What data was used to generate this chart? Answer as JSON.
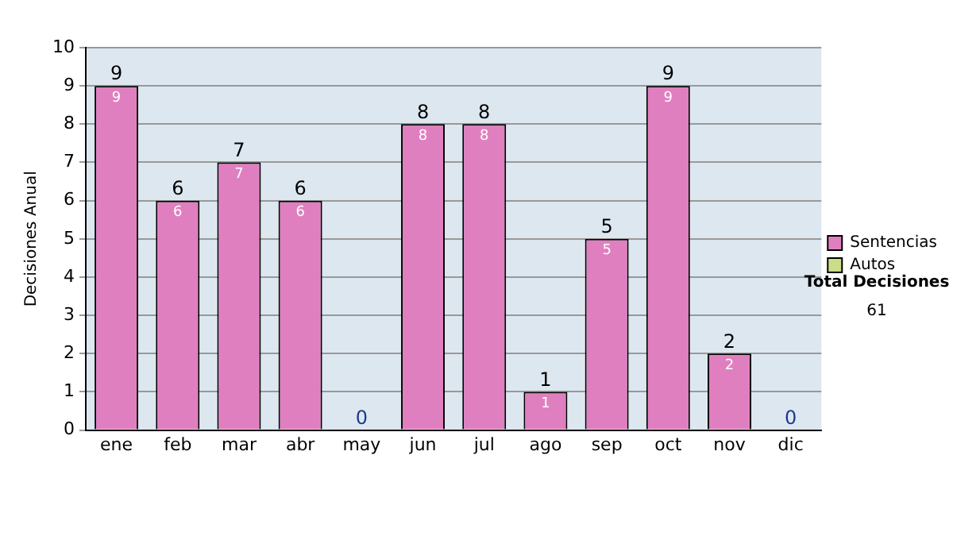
{
  "chart_data": {
    "type": "bar",
    "ylabel": "Decisiones Anual",
    "categories": [
      "ene",
      "feb",
      "mar",
      "abr",
      "may",
      "jun",
      "jul",
      "ago",
      "sep",
      "oct",
      "nov",
      "dic"
    ],
    "series": [
      {
        "name": "Sentencias",
        "color": "#e07fbf",
        "values": [
          9,
          6,
          7,
          6,
          0,
          8,
          8,
          1,
          5,
          9,
          2,
          0
        ],
        "value_labels": [
          "9",
          "6",
          "7",
          "6",
          null,
          "8",
          "8",
          "1",
          "5",
          "9",
          "2",
          null
        ]
      },
      {
        "name": "Autos",
        "color": "#ccdd88",
        "values": [
          0,
          0,
          0,
          0,
          0,
          0,
          0,
          0,
          0,
          0,
          0,
          0
        ]
      }
    ],
    "stacked": true,
    "totals": [
      "9",
      "6",
      "7",
      "6",
      "0",
      "8",
      "8",
      "1",
      "5",
      "9",
      "2",
      "0"
    ],
    "ylim": [
      0,
      10
    ],
    "yticks": [
      0,
      1,
      2,
      3,
      4,
      5,
      6,
      7,
      8,
      9,
      10
    ],
    "grid": "y",
    "legend": "right",
    "annotations": [
      "Total Decisiones",
      "61"
    ]
  }
}
